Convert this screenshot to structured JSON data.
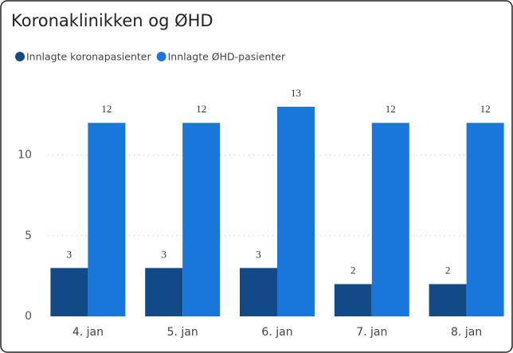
{
  "chart_data": {
    "type": "bar",
    "title": "Koronaklinikken og ØHD",
    "categories": [
      "4. jan",
      "5. jan",
      "6. jan",
      "7. jan",
      "8. jan"
    ],
    "series": [
      {
        "name": "Innlagte koronapasienter",
        "color": "#114a87",
        "values": [
          3,
          3,
          3,
          2,
          2
        ]
      },
      {
        "name": "Innlagte ØHD-pasienter",
        "color": "#1976db",
        "values": [
          12,
          12,
          13,
          12,
          12
        ]
      }
    ],
    "ylim": [
      0,
      13
    ],
    "yticks": [
      0,
      5,
      10
    ],
    "grid": true,
    "legend": "top-left"
  }
}
